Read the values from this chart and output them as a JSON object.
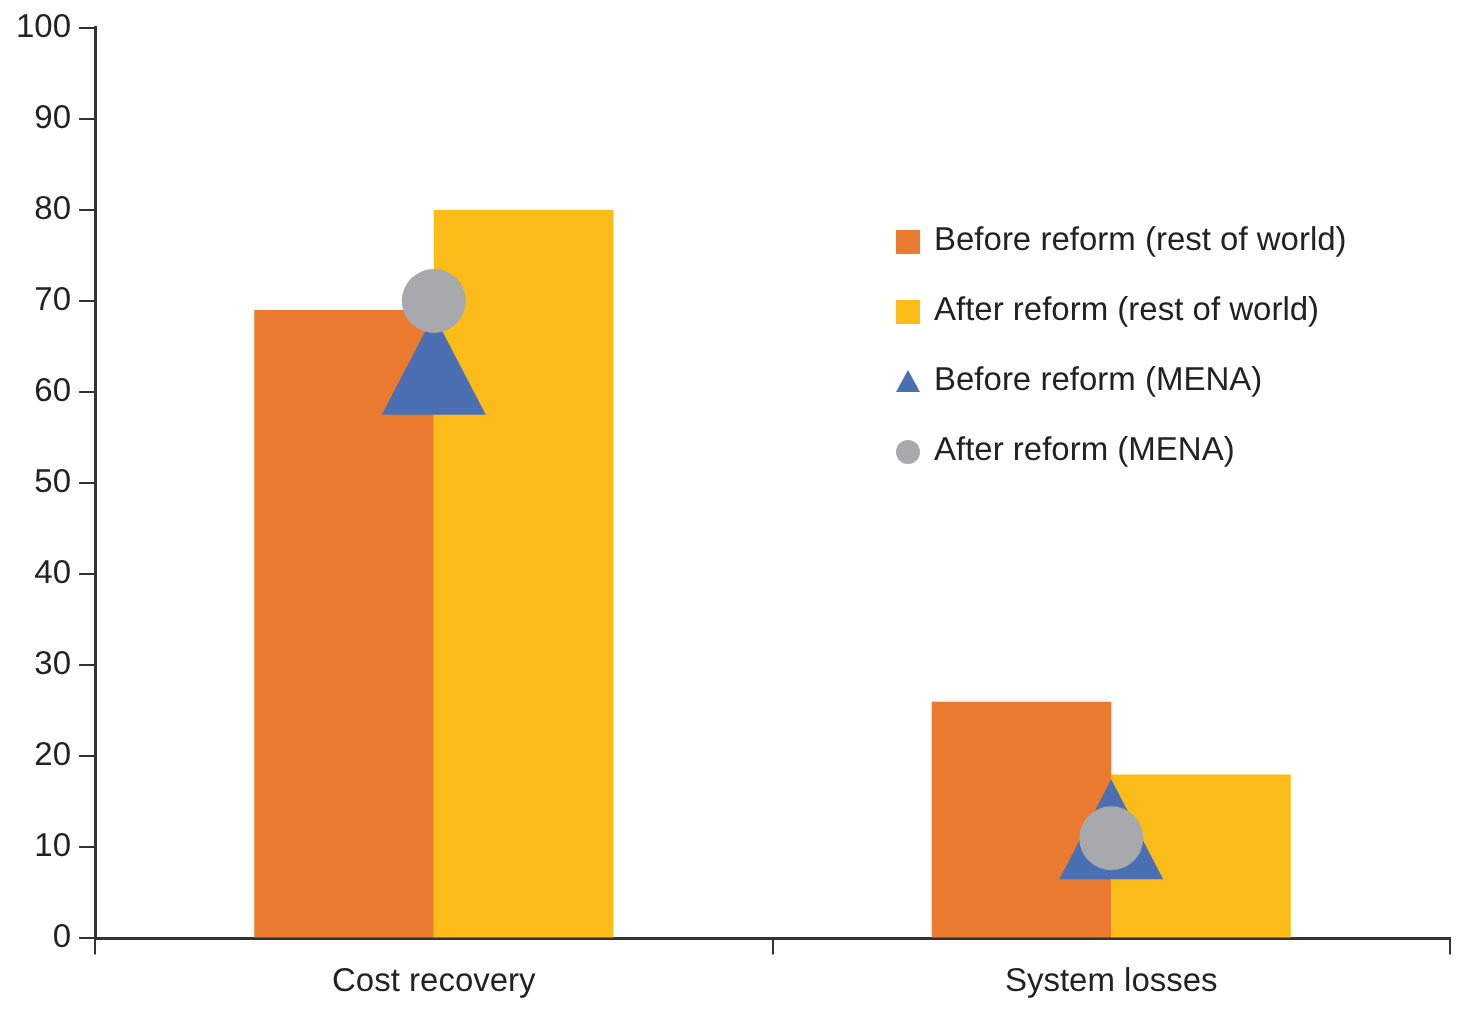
{
  "chart_data": {
    "type": "bar",
    "categories": [
      "Cost recovery",
      "System losses"
    ],
    "series": [
      {
        "name": "Before reform (rest of world)",
        "color": "#e97a30",
        "values": [
          69,
          26
        ]
      },
      {
        "name": "After reform (rest of world)",
        "color": "#fbbb19",
        "values": [
          80,
          18
        ]
      },
      {
        "name": "Before reform (MENA)",
        "type": "scatter",
        "marker": "triangle",
        "color": "#4a70b3",
        "values": [
          63,
          12
        ]
      },
      {
        "name": "After reform (MENA)",
        "type": "scatter",
        "marker": "circle",
        "color": "#a8a9ac",
        "values": [
          70,
          11
        ]
      }
    ],
    "ylim": [
      0,
      100
    ],
    "yticks": [
      0,
      10,
      20,
      30,
      40,
      50,
      60,
      70,
      80,
      90,
      100
    ],
    "grid": false,
    "legend": "top right"
  }
}
